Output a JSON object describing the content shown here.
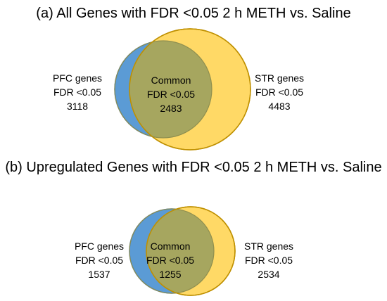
{
  "panels": [
    {
      "title": "(a) All Genes with FDR <0.05 2 h METH vs. Saline",
      "left": {
        "name": "PFC genes",
        "threshold": "FDR <0.05",
        "count": "3118"
      },
      "center": {
        "name": "Common",
        "threshold": "FDR <0.05",
        "count": "2483"
      },
      "right": {
        "name": "STR genes",
        "threshold": "FDR <0.05",
        "count": "4483"
      }
    },
    {
      "title": "(b) Upregulated Genes with FDR <0.05 2 h METH vs. Saline",
      "left": {
        "name": "PFC genes",
        "threshold": "FDR <0.05",
        "count": "1537"
      },
      "center": {
        "name": "Common",
        "threshold": "FDR <0.05",
        "count": "1255"
      },
      "right": {
        "name": "STR genes",
        "threshold": "FDR <0.05",
        "count": "2534"
      }
    }
  ],
  "colors": {
    "pfc_fill": "#5b9bd5",
    "pfc_stroke": "#3f77b4",
    "str_fill": "#ffd966",
    "str_stroke": "#bf9000",
    "overlap_fill": "#a6a65f"
  }
}
